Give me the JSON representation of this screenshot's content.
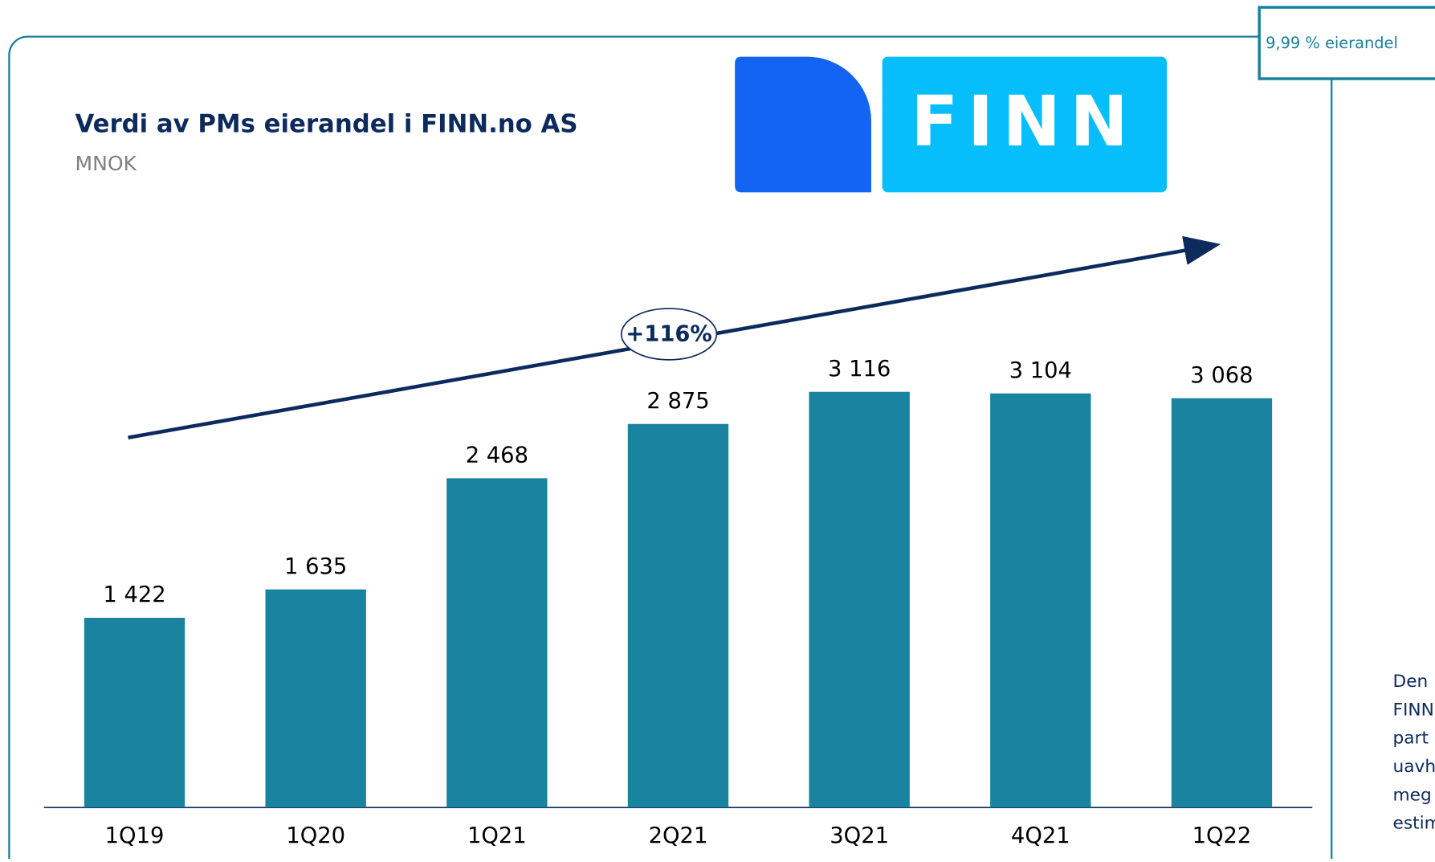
{
  "chart_data": {
    "type": "bar",
    "title": "Verdi av PMs eierandel i FINN.no AS",
    "subtitle": "MNOK",
    "logo_text": "FINN",
    "ownership_label": "9,99 % eierandel",
    "annotation": "+116%",
    "side_note": [
      "Den",
      "FINN",
      "part",
      "uavh",
      "meg",
      "estim"
    ],
    "categories": [
      "1Q19",
      "1Q20",
      "1Q21",
      "2Q21",
      "3Q21",
      "4Q21",
      "1Q22"
    ],
    "values": [
      1422,
      1635,
      2468,
      2875,
      3116,
      3104,
      3068
    ],
    "value_labels": [
      "1 422",
      "1 635",
      "2 468",
      "2 875",
      "3 116",
      "3 104",
      "3 068"
    ],
    "color": "#1a84a0",
    "ylim": [
      0,
      3500
    ]
  }
}
